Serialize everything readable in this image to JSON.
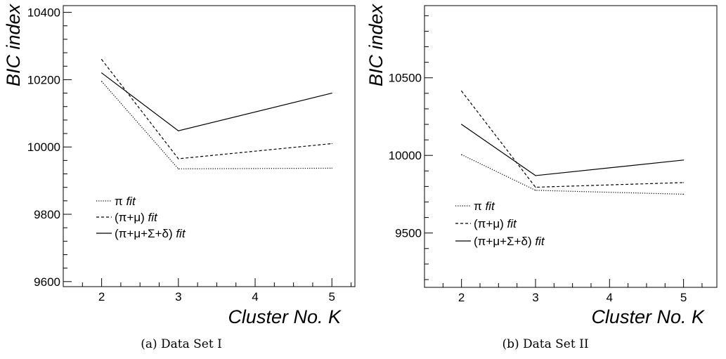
{
  "chart_data": [
    {
      "type": "line",
      "x": [
        2,
        3,
        5
      ],
      "xlim": [
        1.5,
        5.3
      ],
      "ylim": [
        9585,
        10420
      ],
      "xticks": [
        2,
        3,
        4,
        5
      ],
      "yticks": [
        9600,
        9800,
        10000,
        10200,
        10400
      ],
      "xtick_labels": [
        "2",
        "3",
        "4",
        "5"
      ],
      "ytick_labels": [
        "9600",
        "9800",
        "10000",
        "10200",
        "10400"
      ],
      "xlabel": "Cluster No. K",
      "ylabel": "BIC index",
      "caption": "(a)  Data Set I",
      "grid": false,
      "legend_position": "lower-left",
      "series": [
        {
          "name": "π fit",
          "values": [
            10195,
            9935,
            9937
          ],
          "style": "dotted"
        },
        {
          "name": "(π+μ) fit",
          "values": [
            10260,
            9965,
            10010
          ],
          "style": "dashed"
        },
        {
          "name": "(π+μ+Σ+δ) fit",
          "values": [
            10220,
            10048,
            10160
          ],
          "style": "solid"
        }
      ]
    },
    {
      "type": "line",
      "x": [
        2,
        3,
        5
      ],
      "xlim": [
        1.5,
        5.45
      ],
      "ylim": [
        9150,
        10965
      ],
      "xticks": [
        2,
        3,
        4,
        5
      ],
      "yticks": [
        9500,
        10000,
        10500
      ],
      "xtick_labels": [
        "2",
        "3",
        "4",
        "5"
      ],
      "ytick_labels": [
        "9500",
        "10000",
        "10500"
      ],
      "xlabel": "Cluster No. K",
      "ylabel": "BIC index",
      "caption": "(b)  Data Set II",
      "grid": false,
      "legend_position": "lower-left",
      "series": [
        {
          "name": "π fit",
          "values": [
            10005,
            9775,
            9750
          ],
          "style": "dotted"
        },
        {
          "name": "(π+μ) fit",
          "values": [
            10415,
            9795,
            9825
          ],
          "style": "dashed"
        },
        {
          "name": "(π+μ+Σ+δ) fit",
          "values": [
            10200,
            9870,
            9970
          ],
          "style": "solid"
        }
      ]
    }
  ]
}
